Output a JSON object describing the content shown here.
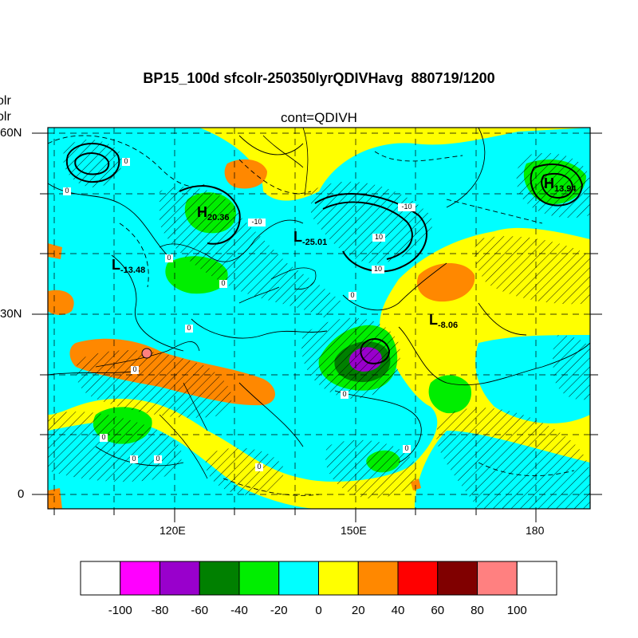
{
  "title": "BP15_100d sfcolr-250350lyrQDIVHavg  880719/1200",
  "subtitle": "cont=QDIVH",
  "left_labels": [
    "olr",
    "olr"
  ],
  "lat_labels": [
    "60N",
    "30N",
    "0"
  ],
  "lon_labels": [
    "120E",
    "150E",
    "180"
  ],
  "colorbar": {
    "labels": [
      "-100",
      "-80",
      "-60",
      "-40",
      "-20",
      "0",
      "20",
      "40",
      "60",
      "80",
      "100"
    ],
    "colors": [
      "#ffffff",
      "#ff00ff",
      "#9900cc",
      "#008000",
      "#00ee00",
      "#00ffff",
      "#ffff00",
      "#ff8800",
      "#ff0000",
      "#800000",
      "#ff8080",
      "#ffffff"
    ]
  },
  "highs_lows": [
    {
      "letter": "H",
      "value": "20.36"
    },
    {
      "letter": "H",
      "value": "13.94"
    },
    {
      "letter": "L",
      "value": "-25.01"
    },
    {
      "letter": "L",
      "value": "-13.48"
    },
    {
      "letter": "L",
      "value": "-8.06"
    }
  ],
  "contour_labels": [
    "0",
    "0",
    "0",
    "0",
    "0",
    "0",
    "0",
    "0",
    "0",
    "0",
    "0",
    "0",
    "0",
    "-10",
    "-10",
    "10",
    "10"
  ]
}
